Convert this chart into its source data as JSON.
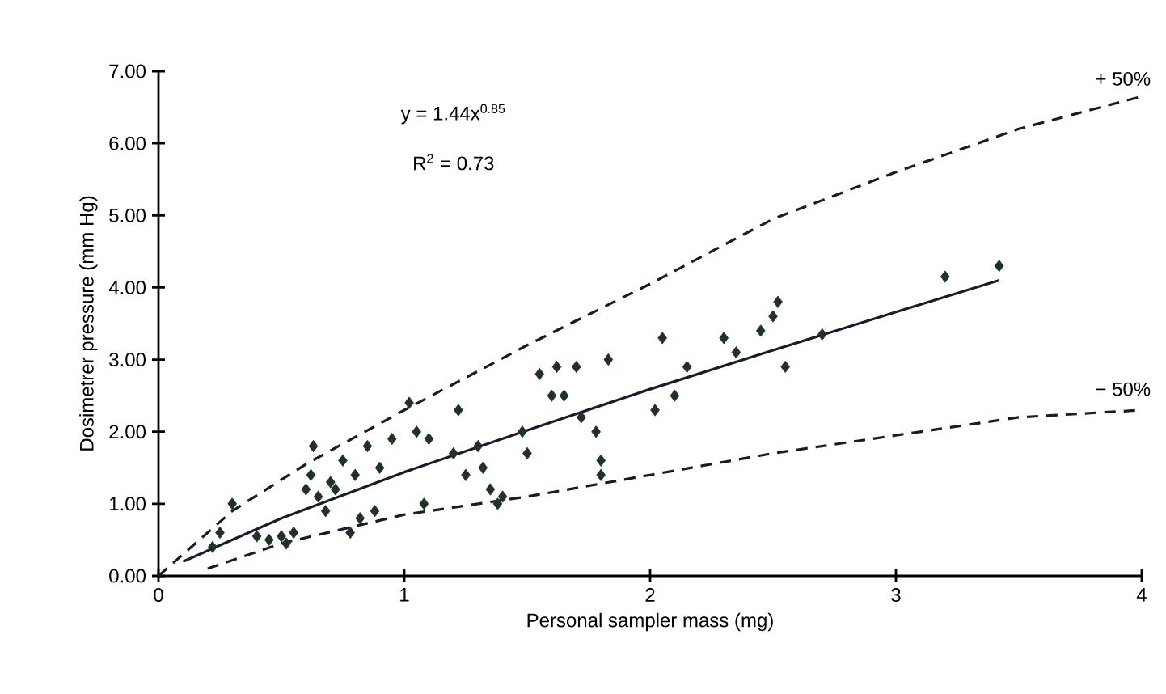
{
  "chart_data": {
    "type": "scatter",
    "xlabel": "Personal sampler mass (mg)",
    "ylabel": "Dosimetrer pressure (mm Hg)",
    "xlim": [
      0,
      4
    ],
    "ylim": [
      0,
      7
    ],
    "xticks": [
      0,
      1,
      2,
      3,
      4
    ],
    "yticks": [
      {
        "value": 0,
        "label": "0.00"
      },
      {
        "value": 1,
        "label": "1.00"
      },
      {
        "value": 2,
        "label": "2.00"
      },
      {
        "value": 3,
        "label": "3.00"
      },
      {
        "value": 4,
        "label": "4.00"
      },
      {
        "value": 5,
        "label": "5.00"
      },
      {
        "value": 6,
        "label": "6.00"
      },
      {
        "value": 7,
        "label": "7.00"
      }
    ],
    "grid": false,
    "annotations": [
      "y = 1.44x$^{0.85}$",
      "R$^{2}$ = 0.73",
      "+ 50%",
      "− 50%"
    ],
    "series": [
      {
        "marker": "diamond",
        "color": "#1e3325",
        "x": [
          0.22,
          0.25,
          0.3,
          0.4,
          0.45,
          0.5,
          0.52,
          0.55,
          0.6,
          0.62,
          0.63,
          0.65,
          0.68,
          0.7,
          0.72,
          0.75,
          0.78,
          0.8,
          0.82,
          0.85,
          0.88,
          0.9,
          0.95,
          1.02,
          1.05,
          1.08,
          1.1,
          1.2,
          1.22,
          1.25,
          1.3,
          1.32,
          1.35,
          1.38,
          1.4,
          1.48,
          1.5,
          1.55,
          1.6,
          1.62,
          1.65,
          1.7,
          1.72,
          1.78,
          1.8,
          1.8,
          1.83,
          2.02,
          2.05,
          2.1,
          2.15,
          2.3,
          2.35,
          2.45,
          2.5,
          2.52,
          2.55,
          2.7,
          3.2,
          3.42
        ],
        "values": [
          0.4,
          0.6,
          1.0,
          0.55,
          0.5,
          0.55,
          0.45,
          0.6,
          1.2,
          1.4,
          1.8,
          1.1,
          0.9,
          1.3,
          1.2,
          1.6,
          0.6,
          1.4,
          0.8,
          1.8,
          0.9,
          1.5,
          1.9,
          2.4,
          2.0,
          1.0,
          1.9,
          1.7,
          2.3,
          1.4,
          1.8,
          1.5,
          1.2,
          1.0,
          1.1,
          2.0,
          1.7,
          2.8,
          2.5,
          2.9,
          2.5,
          2.9,
          2.2,
          2.0,
          1.6,
          1.4,
          3.0,
          2.3,
          3.3,
          2.5,
          2.9,
          3.3,
          3.1,
          3.4,
          3.6,
          3.8,
          2.9,
          3.35,
          4.15,
          4.3
        ]
      },
      {
        "type": "line",
        "marker": "none",
        "line_style": "solid",
        "color": "#1a1a2e",
        "x": [
          0.1,
          0.5,
          1,
          1.5,
          2,
          2.5,
          3,
          3.42
        ],
        "values": [
          0.2,
          0.8,
          1.44,
          2.02,
          2.59,
          3.13,
          3.66,
          4.1
        ]
      },
      {
        "type": "line",
        "marker": "none",
        "line_style": "dashed",
        "color": "#1a1a2e",
        "x": [
          0,
          0.3,
          0.6,
          1,
          1.5,
          2,
          2.5,
          3,
          3.5,
          4
        ],
        "values": [
          0,
          0.9,
          1.55,
          2.3,
          3.2,
          4.05,
          4.95,
          5.6,
          6.2,
          6.65
        ]
      },
      {
        "type": "line",
        "marker": "none",
        "line_style": "dashed",
        "color": "#1a1a2e",
        "x": [
          0.2,
          0.5,
          1,
          1.5,
          2,
          2.5,
          3,
          3.5,
          4
        ],
        "values": [
          0.1,
          0.45,
          0.85,
          1.1,
          1.4,
          1.7,
          1.95,
          2.2,
          2.3
        ]
      }
    ]
  }
}
